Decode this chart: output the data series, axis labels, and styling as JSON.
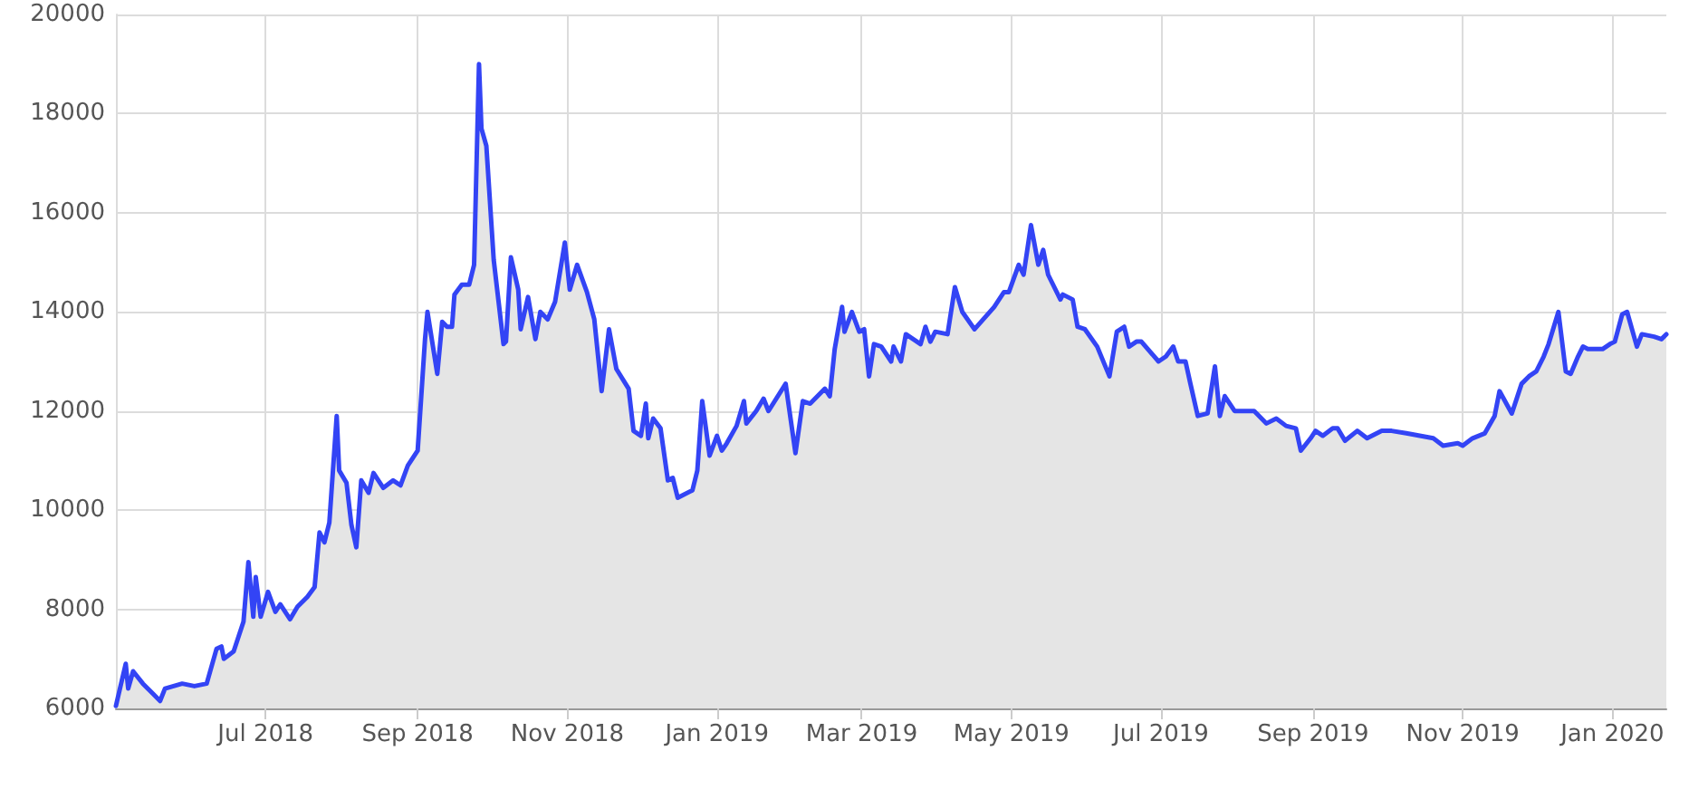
{
  "chart_data": {
    "type": "area",
    "grid": true,
    "marker": "none",
    "line_style": "solid",
    "xlim": [
      "2018-05-01",
      "2020-01-23"
    ],
    "xticks": [
      {
        "value": "2018-07-01",
        "label": "Jul 2018"
      },
      {
        "value": "2018-09-01",
        "label": "Sep 2018"
      },
      {
        "value": "2018-11-01",
        "label": "Nov 2018"
      },
      {
        "value": "2019-01-01",
        "label": "Jan 2019"
      },
      {
        "value": "2019-03-01",
        "label": "Mar 2019"
      },
      {
        "value": "2019-05-01",
        "label": "May 2019"
      },
      {
        "value": "2019-07-01",
        "label": "Jul 2019"
      },
      {
        "value": "2019-09-01",
        "label": "Sep 2019"
      },
      {
        "value": "2019-11-01",
        "label": "Nov 2019"
      },
      {
        "value": "2020-01-01",
        "label": "Jan 2020"
      }
    ],
    "ylim": [
      6000,
      20000
    ],
    "yticks": [
      6000,
      8000,
      10000,
      12000,
      14000,
      16000,
      18000,
      20000
    ],
    "x": [
      "2018-05-01",
      "2018-05-05",
      "2018-05-06",
      "2018-05-08",
      "2018-05-12",
      "2018-05-16",
      "2018-05-19",
      "2018-05-21",
      "2018-05-28",
      "2018-06-02",
      "2018-06-07",
      "2018-06-11",
      "2018-06-13",
      "2018-06-14",
      "2018-06-18",
      "2018-06-22",
      "2018-06-24",
      "2018-06-26",
      "2018-06-27",
      "2018-06-29",
      "2018-07-02",
      "2018-07-05",
      "2018-07-07",
      "2018-07-11",
      "2018-07-14",
      "2018-07-18",
      "2018-07-21",
      "2018-07-23",
      "2018-07-25",
      "2018-07-27",
      "2018-07-30",
      "2018-07-31",
      "2018-08-03",
      "2018-08-05",
      "2018-08-07",
      "2018-08-09",
      "2018-08-12",
      "2018-08-14",
      "2018-08-18",
      "2018-08-22",
      "2018-08-25",
      "2018-08-28",
      "2018-09-01",
      "2018-09-04",
      "2018-09-05",
      "2018-09-09",
      "2018-09-11",
      "2018-09-13",
      "2018-09-15",
      "2018-09-16",
      "2018-09-19",
      "2018-09-22",
      "2018-09-24",
      "2018-09-26",
      "2018-09-27",
      "2018-09-29",
      "2018-10-02",
      "2018-10-04",
      "2018-10-06",
      "2018-10-07",
      "2018-10-09",
      "2018-10-12",
      "2018-10-13",
      "2018-10-16",
      "2018-10-19",
      "2018-10-21",
      "2018-10-24",
      "2018-10-27",
      "2018-10-31",
      "2018-11-02",
      "2018-11-05",
      "2018-11-09",
      "2018-11-12",
      "2018-11-15",
      "2018-11-18",
      "2018-11-21",
      "2018-11-26",
      "2018-11-28",
      "2018-12-01",
      "2018-12-03",
      "2018-12-04",
      "2018-12-06",
      "2018-12-09",
      "2018-12-12",
      "2018-12-14",
      "2018-12-16",
      "2018-12-22",
      "2018-12-24",
      "2018-12-26",
      "2018-12-29",
      "2019-01-01",
      "2019-01-03",
      "2019-01-05",
      "2019-01-09",
      "2019-01-12",
      "2019-01-13",
      "2019-01-17",
      "2019-01-20",
      "2019-01-22",
      "2019-01-29",
      "2019-02-02",
      "2019-02-05",
      "2019-02-08",
      "2019-02-14",
      "2019-02-16",
      "2019-02-18",
      "2019-02-21",
      "2019-02-22",
      "2019-02-25",
      "2019-02-28",
      "2019-03-02",
      "2019-03-04",
      "2019-03-06",
      "2019-03-09",
      "2019-03-13",
      "2019-03-14",
      "2019-03-17",
      "2019-03-19",
      "2019-03-25",
      "2019-03-27",
      "2019-03-29",
      "2019-03-31",
      "2019-04-05",
      "2019-04-08",
      "2019-04-11",
      "2019-04-16",
      "2019-04-24",
      "2019-04-28",
      "2019-04-30",
      "2019-05-04",
      "2019-05-06",
      "2019-05-09",
      "2019-05-12",
      "2019-05-14",
      "2019-05-16",
      "2019-05-21",
      "2019-05-22",
      "2019-05-26",
      "2019-05-28",
      "2019-05-31",
      "2019-06-05",
      "2019-06-10",
      "2019-06-13",
      "2019-06-16",
      "2019-06-18",
      "2019-06-21",
      "2019-06-23",
      "2019-06-30",
      "2019-07-03",
      "2019-07-06",
      "2019-07-08",
      "2019-07-11",
      "2019-07-13",
      "2019-07-16",
      "2019-07-20",
      "2019-07-23",
      "2019-07-25",
      "2019-07-27",
      "2019-07-31",
      "2019-08-04",
      "2019-08-08",
      "2019-08-13",
      "2019-08-17",
      "2019-08-21",
      "2019-08-25",
      "2019-08-27",
      "2019-08-31",
      "2019-09-02",
      "2019-09-05",
      "2019-09-09",
      "2019-09-11",
      "2019-09-14",
      "2019-09-19",
      "2019-09-23",
      "2019-09-29",
      "2019-10-03",
      "2019-10-09",
      "2019-10-20",
      "2019-10-24",
      "2019-10-30",
      "2019-11-01",
      "2019-11-05",
      "2019-11-10",
      "2019-11-14",
      "2019-11-16",
      "2019-11-21",
      "2019-11-25",
      "2019-11-28",
      "2019-12-01",
      "2019-12-04",
      "2019-12-06",
      "2019-12-10",
      "2019-12-13",
      "2019-12-15",
      "2019-12-18",
      "2019-12-20",
      "2019-12-22",
      "2019-12-28",
      "2019-12-31",
      "2020-01-02",
      "2020-01-05",
      "2020-01-07",
      "2020-01-11",
      "2020-01-13",
      "2020-01-18",
      "2020-01-21",
      "2020-01-23"
    ],
    "series": [
      {
        "color": "#3344f5",
        "values": [
          6050,
          6900,
          6400,
          6750,
          6500,
          6300,
          6150,
          6400,
          6500,
          6450,
          6500,
          7200,
          7250,
          7000,
          7150,
          7750,
          8950,
          7850,
          8650,
          7850,
          8350,
          7950,
          8100,
          7800,
          8050,
          8250,
          8450,
          9550,
          9350,
          9750,
          11900,
          10800,
          10550,
          9700,
          9250,
          10600,
          10350,
          10750,
          10450,
          10600,
          10500,
          10900,
          11200,
          13450,
          14000,
          12750,
          13800,
          13700,
          13700,
          14350,
          14550,
          14550,
          14950,
          19000,
          17700,
          17350,
          15050,
          14200,
          13350,
          13400,
          15100,
          14450,
          13650,
          14300,
          13450,
          14000,
          13850,
          14200,
          15400,
          14450,
          14950,
          14400,
          13850,
          12400,
          13650,
          12850,
          12450,
          11600,
          11500,
          12150,
          11450,
          11850,
          11650,
          10600,
          10650,
          10250,
          10400,
          10800,
          12200,
          11100,
          11500,
          11200,
          11350,
          11700,
          12200,
          11750,
          12000,
          12250,
          12000,
          12550,
          11150,
          12200,
          12150,
          12450,
          12300,
          13250,
          14100,
          13600,
          14000,
          13600,
          13650,
          12700,
          13350,
          13300,
          13000,
          13300,
          13000,
          13550,
          13350,
          13700,
          13400,
          13600,
          13550,
          14500,
          14000,
          13650,
          14100,
          14400,
          14400,
          14950,
          14750,
          15750,
          14950,
          15250,
          14750,
          14250,
          14350,
          14250,
          13700,
          13650,
          13300,
          12700,
          13600,
          13700,
          13300,
          13400,
          13400,
          13000,
          13100,
          13300,
          13000,
          13000,
          12550,
          11900,
          11950,
          12900,
          11900,
          12300,
          12000,
          12000,
          12000,
          11750,
          11850,
          11700,
          11650,
          11200,
          11450,
          11600,
          11500,
          11650,
          11650,
          11400,
          11600,
          11450,
          11600,
          11600,
          11550,
          11450,
          11300,
          11350,
          11300,
          11450,
          11550,
          11900,
          12400,
          11950,
          12550,
          12700,
          12800,
          13100,
          13350,
          14000,
          12800,
          12750,
          13100,
          13300,
          13250,
          13250,
          13350,
          13400,
          13950,
          14000,
          13300,
          13550,
          13500,
          13450,
          13550
        ]
      }
    ]
  }
}
